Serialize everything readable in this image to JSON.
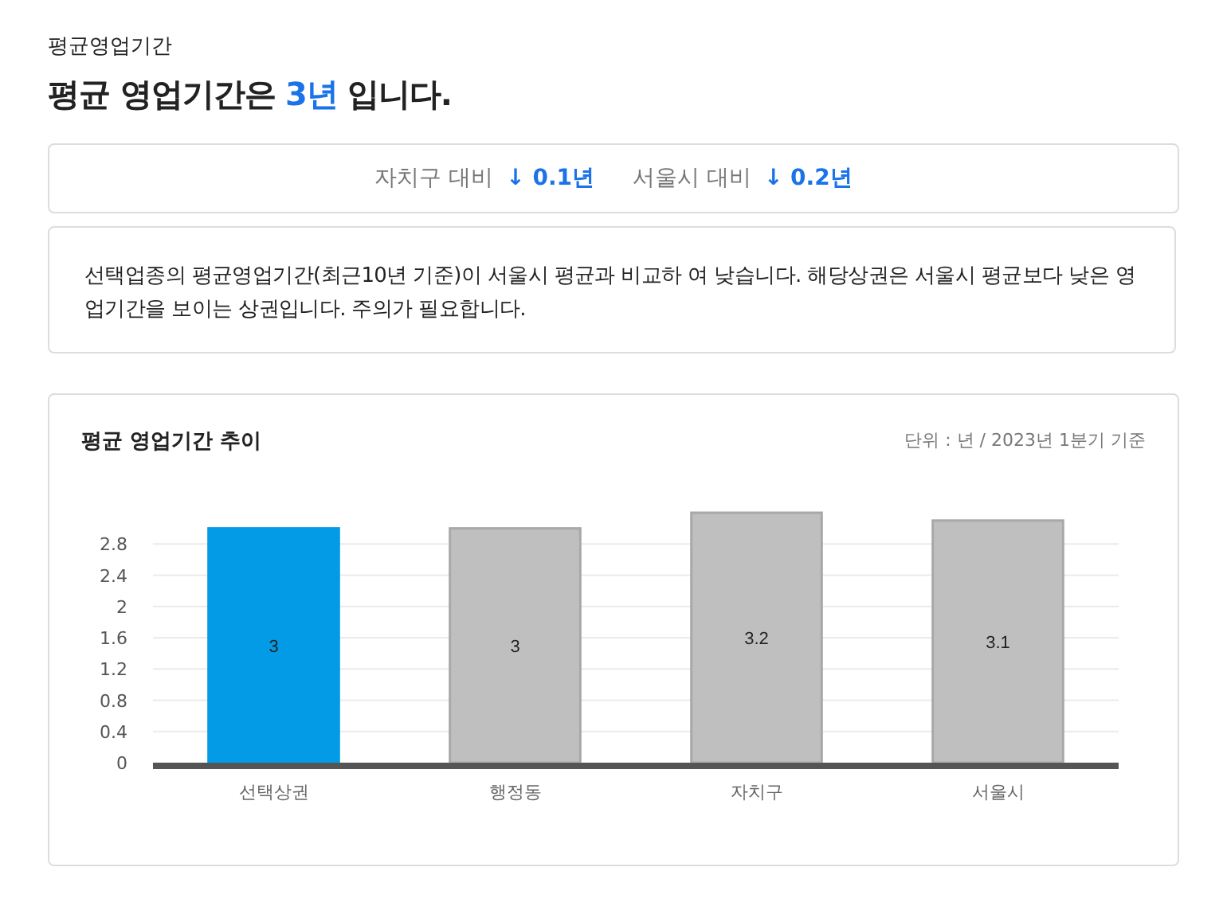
{
  "chart_data": {
    "type": "bar",
    "title": "평균 영업기간 추이",
    "subtitle": "단위 : 년 / 2023년 1분기 기준",
    "annotations": [
      "평균영업기간",
      "평균 영업기간은",
      "3년",
      "입니다.",
      "자치구 대비",
      "↓ 0.1년",
      "서울시 대비",
      "↓ 0.2년",
      "선택업종의 평균영업기간(최근10년 기준)이 서울시 평균과 비교하 여 낮습니다. 해당상권은 서울시 평균보다 낮은 영업기간을 보이는 상권입니다. 주의가 필요합니다."
    ],
    "categories": [
      "선택상권",
      "행정동",
      "자치구",
      "서울시"
    ],
    "values": [
      3,
      3,
      3.2,
      3.1
    ],
    "colors": [
      "#039be5",
      "#bfbfbf",
      "#bfbfbf",
      "#bfbfbf"
    ],
    "ylim": [
      0,
      3.2
    ],
    "yticks": [
      0,
      0.4,
      0.8,
      1.2,
      1.6,
      2,
      2.4,
      2.8
    ],
    "grid": "y",
    "data_labels": true
  }
}
